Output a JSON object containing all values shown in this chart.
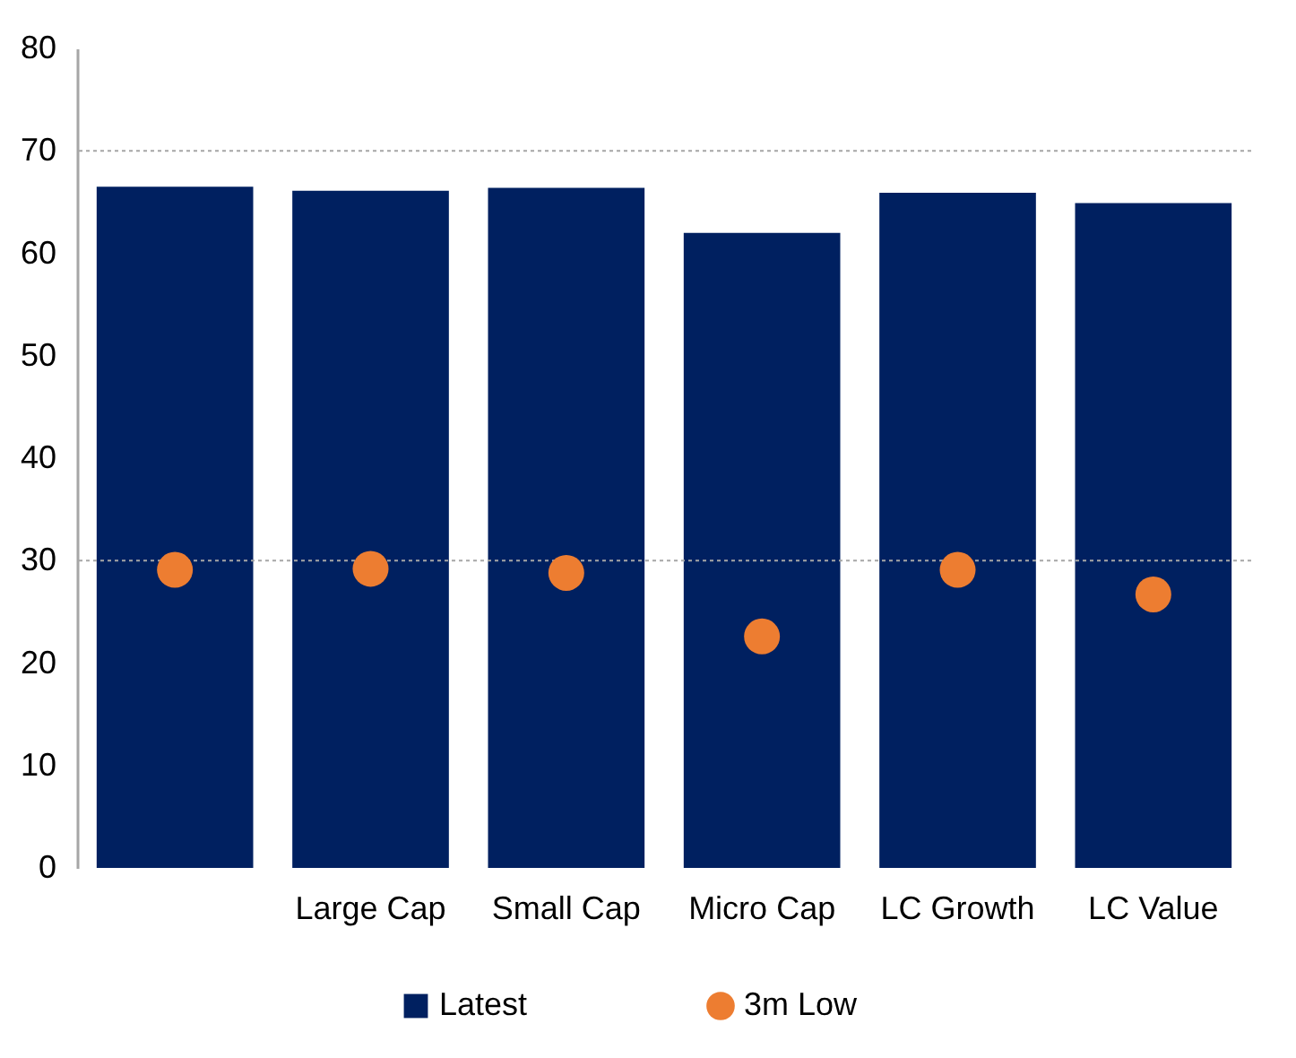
{
  "chart_data": {
    "type": "bar",
    "categories": [
      null,
      "Large Cap",
      "Small Cap",
      "Micro Cap",
      "LC Growth",
      "LC Value"
    ],
    "series": [
      {
        "name": "Latest",
        "color": "#002060",
        "values": [
          66.5,
          66.1,
          66.4,
          62.0,
          65.9,
          64.9
        ]
      },
      {
        "name": "3m Low",
        "type": "scatter",
        "color": "#ed7d31",
        "x": [
          null,
          "Large Cap",
          "Small Cap",
          "Micro Cap",
          "LC Growth",
          "LC Value"
        ],
        "values": [
          29.1,
          29.2,
          28.8,
          22.6,
          29.1,
          26.7
        ]
      }
    ],
    "ylim": [
      0,
      80
    ],
    "yticks": [
      0,
      10,
      20,
      30,
      40,
      50,
      60,
      70,
      80
    ],
    "ref_lines": [
      {
        "axis": "y",
        "value": 70,
        "color": "#a6a6a6",
        "line_style": "dotted"
      },
      {
        "axis": "y",
        "value": 30,
        "color": "#a6a6a6",
        "line_style": "dotted"
      }
    ],
    "marker": "circle",
    "grid": false,
    "legend": "bottom"
  }
}
